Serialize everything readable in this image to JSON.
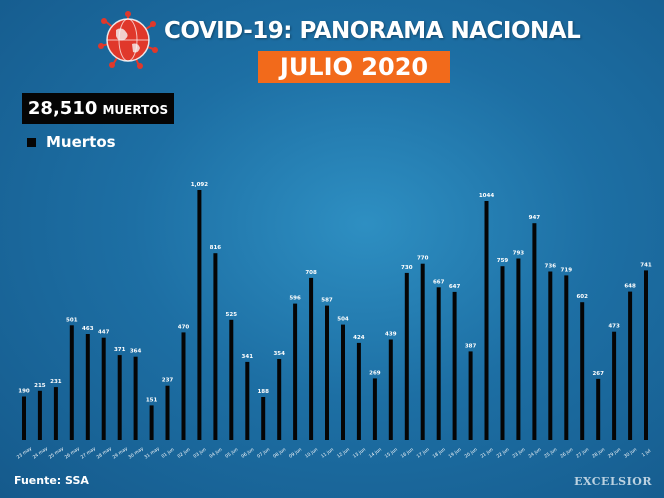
{
  "header": {
    "title": "COVID-19: PANORAMA NACIONAL",
    "subtitle": "JULIO 2020"
  },
  "summary": {
    "total_value": "28,510",
    "total_unit": "MUERTOS"
  },
  "legend": {
    "label": "Muertos"
  },
  "footer": {
    "source": "Fuente: SSA",
    "brand": "EXCELSIOR"
  },
  "colors": {
    "bar": "#050505",
    "accent": "#f26a1b",
    "globe": "#e0382b",
    "background": "#1d6fa4",
    "text": "#ffffff"
  },
  "chart_data": {
    "type": "bar",
    "categories": [
      "23 may",
      "24 may",
      "25 may",
      "26 may",
      "27 may",
      "28 may",
      "29 may",
      "30 may",
      "31 may",
      "01 jun",
      "02 jun",
      "03 jun",
      "04 jun",
      "05 jun",
      "06 jun",
      "07 jun",
      "08 jun",
      "09 jun",
      "10 jun",
      "11 jun",
      "12 jun",
      "13 jun",
      "14 jun",
      "15 jun",
      "16 jun",
      "17 jun",
      "18 jun",
      "19 jun",
      "20 jun",
      "21 jun",
      "22 jun",
      "23 jun",
      "24 jun",
      "25 jun",
      "26 jun",
      "27 jun",
      "28 jun",
      "29 jun",
      "30 jun",
      "1 jul"
    ],
    "values": [
      190,
      215,
      231,
      501,
      463,
      447,
      371,
      364,
      151,
      237,
      470,
      1092,
      816,
      525,
      341,
      188,
      354,
      596,
      708,
      587,
      504,
      424,
      269,
      439,
      730,
      770,
      667,
      647,
      387,
      1044,
      759,
      793,
      947,
      736,
      719,
      602,
      267,
      473,
      648,
      741
    ],
    "value_labels": [
      "190",
      "215",
      "231",
      "501",
      "463",
      "447",
      "371",
      "364",
      "151",
      "237",
      "470",
      "1,092",
      "816",
      "525",
      "341",
      "188",
      "354",
      "596",
      "708",
      "587",
      "504",
      "424",
      "269",
      "439",
      "730",
      "770",
      "667",
      "647",
      "387",
      "1044",
      "759",
      "793",
      "947",
      "736",
      "719",
      "602",
      "267",
      "473",
      "648",
      "741"
    ],
    "series": [
      {
        "name": "Muertos"
      }
    ],
    "ylim": [
      0,
      1092
    ],
    "grid": false,
    "legend_position": "top-left"
  }
}
